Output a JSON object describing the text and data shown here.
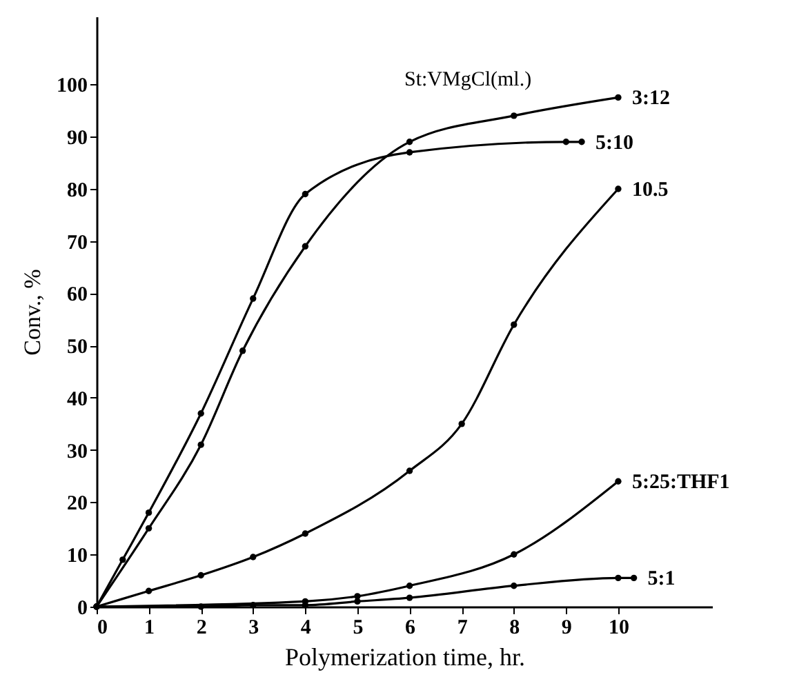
{
  "chart_data": {
    "type": "line",
    "xlabel": "Polymerization time, hr.",
    "ylabel": "Conv., %",
    "legend_title": "St:VMgCl(ml.)",
    "legend": false,
    "grid": false,
    "marker": "circle",
    "line_style": "solid",
    "xlim": [
      0,
      11.8
    ],
    "ylim": [
      0,
      113
    ],
    "xticks": [
      0,
      1,
      2,
      3,
      4,
      5,
      6,
      7,
      8,
      9,
      10
    ],
    "yticks": [
      0,
      10,
      20,
      30,
      40,
      50,
      60,
      70,
      80,
      90,
      100
    ],
    "series": [
      {
        "name": "3:12",
        "color": "#000000",
        "x": [
          0,
          1,
          2,
          2.8,
          4,
          6,
          8,
          10
        ],
        "values": [
          0,
          15,
          31,
          49,
          69,
          89,
          94,
          97.5
        ]
      },
      {
        "name": "5:10",
        "color": "#000000",
        "x": [
          0,
          0.5,
          1,
          2,
          3,
          4,
          6,
          9,
          9.3
        ],
        "values": [
          0,
          9,
          18,
          37,
          59,
          79,
          87,
          89,
          89
        ]
      },
      {
        "name": "10.5",
        "color": "#000000",
        "x": [
          0,
          1,
          2,
          3,
          4,
          6,
          7,
          8,
          10
        ],
        "values": [
          0,
          3,
          6,
          9.5,
          14,
          26,
          35,
          54,
          80
        ]
      },
      {
        "name": "5:25:THF1",
        "color": "#000000",
        "x": [
          0,
          4,
          5,
          6,
          8,
          10
        ],
        "values": [
          0,
          1,
          2,
          4,
          10,
          24
        ]
      },
      {
        "name": "5:1",
        "color": "#000000",
        "x": [
          0,
          2,
          3,
          4,
          5,
          6,
          8,
          10,
          10.3
        ],
        "values": [
          0,
          0,
          0.3,
          0.3,
          1,
          1.7,
          4,
          5.5,
          5.5
        ]
      }
    ]
  }
}
